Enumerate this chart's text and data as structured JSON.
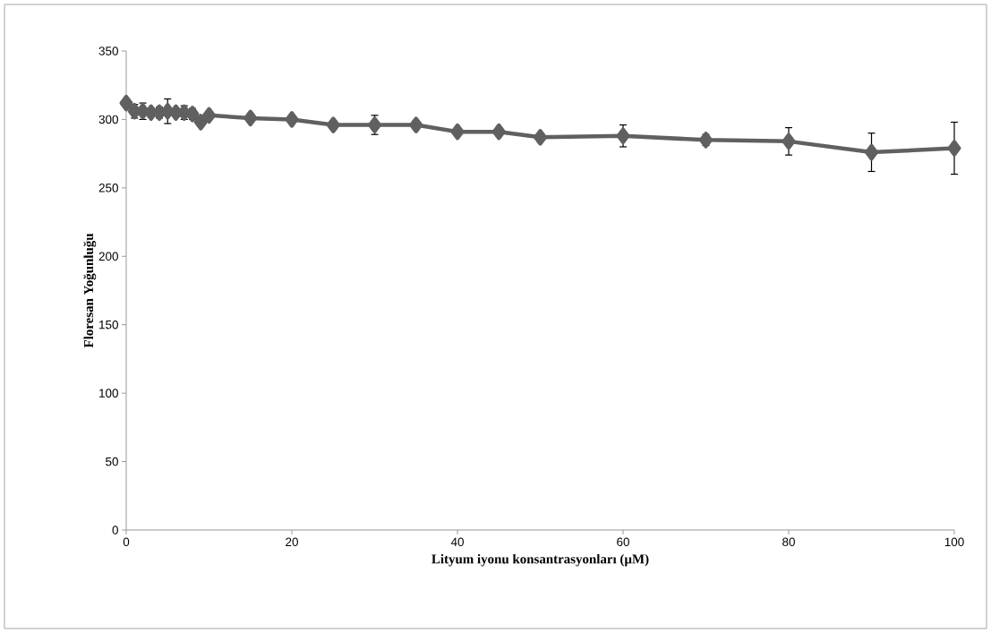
{
  "chart_data": {
    "type": "line",
    "xlabel": "Lityum iyonu konsantrasyonları (µM)",
    "ylabel": "Floresan Yoğunluğu",
    "x": [
      0,
      1,
      2,
      3,
      4,
      5,
      6,
      7,
      8,
      9,
      10,
      15,
      20,
      25,
      30,
      35,
      40,
      45,
      50,
      60,
      70,
      80,
      90,
      100
    ],
    "series": [
      {
        "color": "#606060",
        "values": [
          312,
          306,
          306,
          305,
          305,
          306,
          305,
          305,
          304,
          298,
          303,
          301,
          300,
          296,
          296,
          296,
          291,
          291,
          287,
          288,
          285,
          284,
          276,
          279
        ],
        "errors": [
          2,
          5,
          6,
          3,
          4,
          9,
          3,
          5,
          4,
          3,
          2,
          3,
          3,
          3,
          7,
          3,
          3,
          3,
          2,
          8,
          4,
          10,
          14,
          19
        ]
      }
    ],
    "xlim": [
      0,
      100
    ],
    "ylim": [
      0,
      350
    ],
    "xticks": [
      0,
      20,
      40,
      60,
      80,
      100
    ],
    "yticks": [
      0,
      50,
      100,
      150,
      200,
      250,
      300,
      350
    ],
    "grid": false,
    "marker": "diamond",
    "line_style": "solid"
  }
}
